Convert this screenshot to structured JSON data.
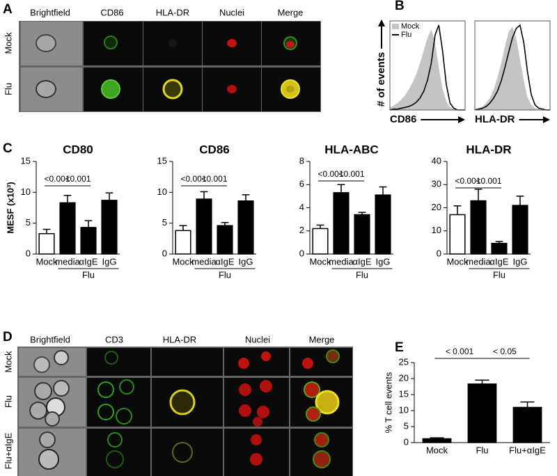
{
  "panels": {
    "a": {
      "letter": "A",
      "columns": [
        "Brightfield",
        "CD86",
        "HLA-DR",
        "Nuclei",
        "Merge"
      ],
      "rows": [
        "Mock",
        "Flu"
      ]
    },
    "b": {
      "letter": "B"
    },
    "c": {
      "letter": "C"
    },
    "d": {
      "letter": "D",
      "columns": [
        "Brightfield",
        "CD3",
        "HLA-DR",
        "Nuclei",
        "Merge"
      ],
      "rows": [
        "Mock",
        "Flu",
        "Flu+αIgE"
      ]
    },
    "e": {
      "letter": "E"
    }
  },
  "chart_data": [
    {
      "type": "area",
      "xlabel": "CD86",
      "ylabel": "# of events",
      "legend": "upper left",
      "x": [
        0,
        5,
        10,
        15,
        20,
        25,
        30,
        35,
        40,
        45,
        50,
        55,
        60,
        65,
        70,
        75,
        80,
        85,
        90,
        95,
        100
      ],
      "xlim": [
        0,
        100
      ],
      "ylim": [
        0,
        105
      ],
      "series": [
        {
          "name": "Mock",
          "color": "#c4c4c4",
          "style": "area",
          "values": [
            3,
            5,
            8,
            12,
            17,
            24,
            32,
            42,
            55,
            70,
            85,
            95,
            80,
            50,
            25,
            10,
            3,
            1,
            0,
            0,
            0
          ]
        },
        {
          "name": "Flu",
          "color": "#000000",
          "style": "line",
          "values": [
            0,
            1,
            1,
            2,
            3,
            4,
            6,
            9,
            14,
            22,
            35,
            55,
            88,
            100,
            70,
            30,
            8,
            2,
            0,
            0,
            0
          ]
        }
      ]
    },
    {
      "type": "area",
      "xlabel": "HLA-DR",
      "x": [
        0,
        5,
        10,
        15,
        20,
        25,
        30,
        35,
        40,
        45,
        50,
        55,
        60,
        65,
        70,
        75,
        80,
        85,
        90,
        95,
        100
      ],
      "xlim": [
        0,
        100
      ],
      "ylim": [
        0,
        105
      ],
      "series": [
        {
          "name": "Mock",
          "color": "#c4c4c4",
          "style": "area",
          "values": [
            1,
            2,
            4,
            8,
            14,
            24,
            38,
            55,
            75,
            92,
            98,
            85,
            60,
            35,
            15,
            6,
            2,
            1,
            0,
            0,
            0
          ]
        },
        {
          "name": "Flu",
          "color": "#000000",
          "style": "line",
          "values": [
            0,
            1,
            2,
            4,
            8,
            14,
            22,
            34,
            50,
            68,
            85,
            96,
            100,
            80,
            45,
            18,
            6,
            2,
            1,
            0,
            0
          ]
        }
      ]
    },
    {
      "type": "bar",
      "title": "CD80",
      "ylabel": "MESF (x10³)",
      "categories": [
        "Mock",
        "media",
        "αIgE",
        "IgG"
      ],
      "group_label": "Flu",
      "values": [
        3.3,
        8.3,
        4.3,
        8.7
      ],
      "errors": [
        0.7,
        1.2,
        1.1,
        1.2
      ],
      "colors": [
        "#ffffff",
        "#000000",
        "#000000",
        "#000000"
      ],
      "ylim": [
        0,
        15
      ],
      "yticks": [
        0,
        5,
        10,
        15
      ],
      "annotations": [
        "<0.001",
        "<0.001"
      ]
    },
    {
      "type": "bar",
      "title": "CD86",
      "categories": [
        "Mock",
        "media",
        "αIgE",
        "IgG"
      ],
      "group_label": "Flu",
      "values": [
        3.8,
        8.9,
        4.6,
        8.6
      ],
      "errors": [
        0.8,
        1.2,
        0.5,
        1.0
      ],
      "colors": [
        "#ffffff",
        "#000000",
        "#000000",
        "#000000"
      ],
      "ylim": [
        0,
        15
      ],
      "yticks": [
        0,
        5,
        10,
        15
      ],
      "annotations": [
        "<0.001",
        "<0.001"
      ]
    },
    {
      "type": "bar",
      "title": "HLA-ABC",
      "categories": [
        "Mock",
        "media",
        "αIgE",
        "IgG"
      ],
      "group_label": "Flu",
      "values": [
        2.2,
        5.3,
        3.4,
        5.1
      ],
      "errors": [
        0.3,
        0.7,
        0.2,
        0.7
      ],
      "colors": [
        "#ffffff",
        "#000000",
        "#000000",
        "#000000"
      ],
      "ylim": [
        0,
        8
      ],
      "yticks": [
        0,
        2,
        4,
        6,
        8
      ],
      "annotations": [
        "<0.001",
        "<0.001"
      ]
    },
    {
      "type": "bar",
      "title": "HLA-DR",
      "categories": [
        "Mock",
        "media",
        "αIgE",
        "IgG"
      ],
      "group_label": "Flu",
      "values": [
        17,
        23,
        4.6,
        21
      ],
      "errors": [
        3.8,
        5,
        0.8,
        4
      ],
      "colors": [
        "#ffffff",
        "#000000",
        "#000000",
        "#000000"
      ],
      "ylim": [
        0,
        40
      ],
      "yticks": [
        0,
        10,
        20,
        30,
        40
      ],
      "annotations": [
        "<0.001",
        "<0.001"
      ]
    },
    {
      "type": "bar",
      "ylabel": "% T cell events",
      "categories": [
        "Mock",
        "Flu",
        "Flu+αIgE"
      ],
      "values": [
        1.2,
        18.3,
        11
      ],
      "errors": [
        0.3,
        1.2,
        1.7
      ],
      "colors": [
        "#000000",
        "#000000",
        "#000000"
      ],
      "ylim": [
        0,
        25
      ],
      "yticks": [
        0,
        5,
        10,
        15,
        20,
        25
      ],
      "annotations": [
        "< 0.001",
        "< 0.05"
      ]
    }
  ]
}
